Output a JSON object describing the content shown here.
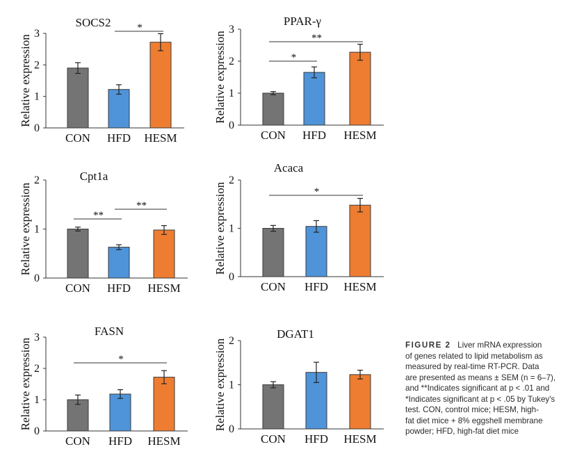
{
  "colors": {
    "CON": "#747474",
    "HFD": "#4f94d9",
    "HESM": "#ee7d31"
  },
  "chart_data": [
    {
      "type": "bar",
      "title": "SOCS2",
      "ylabel": "Relative expression",
      "categories": [
        "CON",
        "HFD",
        "HESM"
      ],
      "values": [
        1.9,
        1.22,
        2.72
      ],
      "errors": [
        0.17,
        0.15,
        0.27
      ],
      "ylim": [
        0,
        3
      ],
      "yticks": [
        "0",
        "1",
        "2",
        "3"
      ],
      "significance": [
        {
          "from": "HFD",
          "to": "HESM",
          "label": "*"
        }
      ]
    },
    {
      "type": "bar",
      "title": "PPAR-γ",
      "ylabel": "Relative expression",
      "categories": [
        "CON",
        "HFD",
        "HESM"
      ],
      "values": [
        1.0,
        1.65,
        2.28
      ],
      "errors": [
        0.05,
        0.17,
        0.25
      ],
      "ylim": [
        0,
        3
      ],
      "yticks": [
        "0",
        "1",
        "2",
        "3"
      ],
      "significance": [
        {
          "from": "CON",
          "to": "HFD",
          "label": "*"
        },
        {
          "from": "CON",
          "to": "HESM",
          "label": "**"
        }
      ]
    },
    {
      "type": "bar",
      "title": "Cpt1a",
      "ylabel": "Relative expression",
      "categories": [
        "CON",
        "HFD",
        "HESM"
      ],
      "values": [
        1.0,
        0.63,
        0.98
      ],
      "errors": [
        0.04,
        0.05,
        0.09
      ],
      "ylim": [
        0,
        2
      ],
      "yticks": [
        "0",
        "1",
        "2"
      ],
      "significance": [
        {
          "from": "CON",
          "to": "HFD",
          "label": "**"
        },
        {
          "from": "HFD",
          "to": "HESM",
          "label": "**"
        }
      ]
    },
    {
      "type": "bar",
      "title": "Acaca",
      "ylabel": "Relative expression",
      "categories": [
        "CON",
        "HFD",
        "HESM"
      ],
      "values": [
        1.0,
        1.04,
        1.48
      ],
      "errors": [
        0.06,
        0.12,
        0.14
      ],
      "ylim": [
        0,
        2
      ],
      "yticks": [
        "0",
        "1",
        "2"
      ],
      "significance": [
        {
          "from": "CON",
          "to": "HESM",
          "label": "*"
        }
      ]
    },
    {
      "type": "bar",
      "title": "FASN",
      "ylabel": "Relative expression",
      "categories": [
        "CON",
        "HFD",
        "HESM"
      ],
      "values": [
        1.0,
        1.18,
        1.72
      ],
      "errors": [
        0.15,
        0.14,
        0.21
      ],
      "ylim": [
        0,
        3
      ],
      "yticks": [
        "0",
        "1",
        "2",
        "3"
      ],
      "significance": [
        {
          "from": "CON",
          "to": "HESM",
          "label": "*"
        }
      ]
    },
    {
      "type": "bar",
      "title": "DGAT1",
      "ylabel": "Relative expression",
      "categories": [
        "CON",
        "HFD",
        "HESM"
      ],
      "values": [
        1.0,
        1.28,
        1.23
      ],
      "errors": [
        0.07,
        0.23,
        0.1
      ],
      "ylim": [
        0,
        2
      ],
      "yticks": [
        "0",
        "1",
        "2"
      ],
      "significance": []
    }
  ],
  "caption": {
    "label": "FIGURE 2",
    "lines": [
      "Liver mRNA expression",
      "of genes related to lipid metabolism as",
      "measured by real-time RT-PCR. Data",
      "are presented as means ± SEM (n = 6–7),",
      "and **Indicates significant at p  < .01 and",
      "*Indicates significant at p < .05 by Tukey's",
      "test. CON, control mice; HESM, high-",
      "fat diet mice + 8% eggshell membrane",
      "powder; HFD, high-fat diet mice"
    ]
  }
}
